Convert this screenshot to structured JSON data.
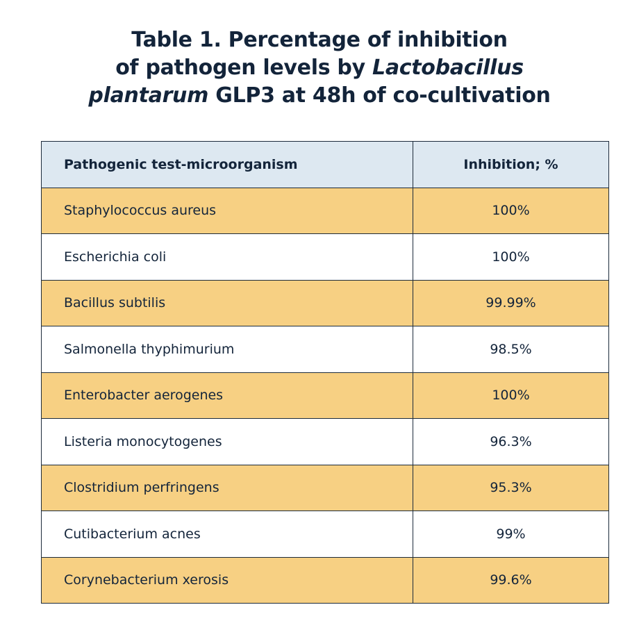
{
  "title": [
    "Table 1. Percentage of inhibition",
    "of pathogen levels by",
    "Lactobacillus",
    "plantarum",
    "GLP3 at 48h of co-cultivation"
  ],
  "table": {
    "header": [
      "Pathogenic test-microorganism",
      "Inhibition; %"
    ],
    "rows": [
      [
        "Staphylococcus aureus",
        "100%"
      ],
      [
        "Escherichia coli",
        "100%"
      ],
      [
        "Bacillus subtilis",
        "99.99%"
      ],
      [
        "Salmonella thyphimurium",
        "98.5%"
      ],
      [
        "Enterobacter aerogenes",
        "100%"
      ],
      [
        "Listeria monocytogenes",
        "96.3%"
      ],
      [
        "Clostridium perfringens",
        "95.3%"
      ],
      [
        "Cutibacterium acnes",
        "99%"
      ],
      [
        "Corynebacterium xerosis",
        "99.6%"
      ]
    ]
  }
}
